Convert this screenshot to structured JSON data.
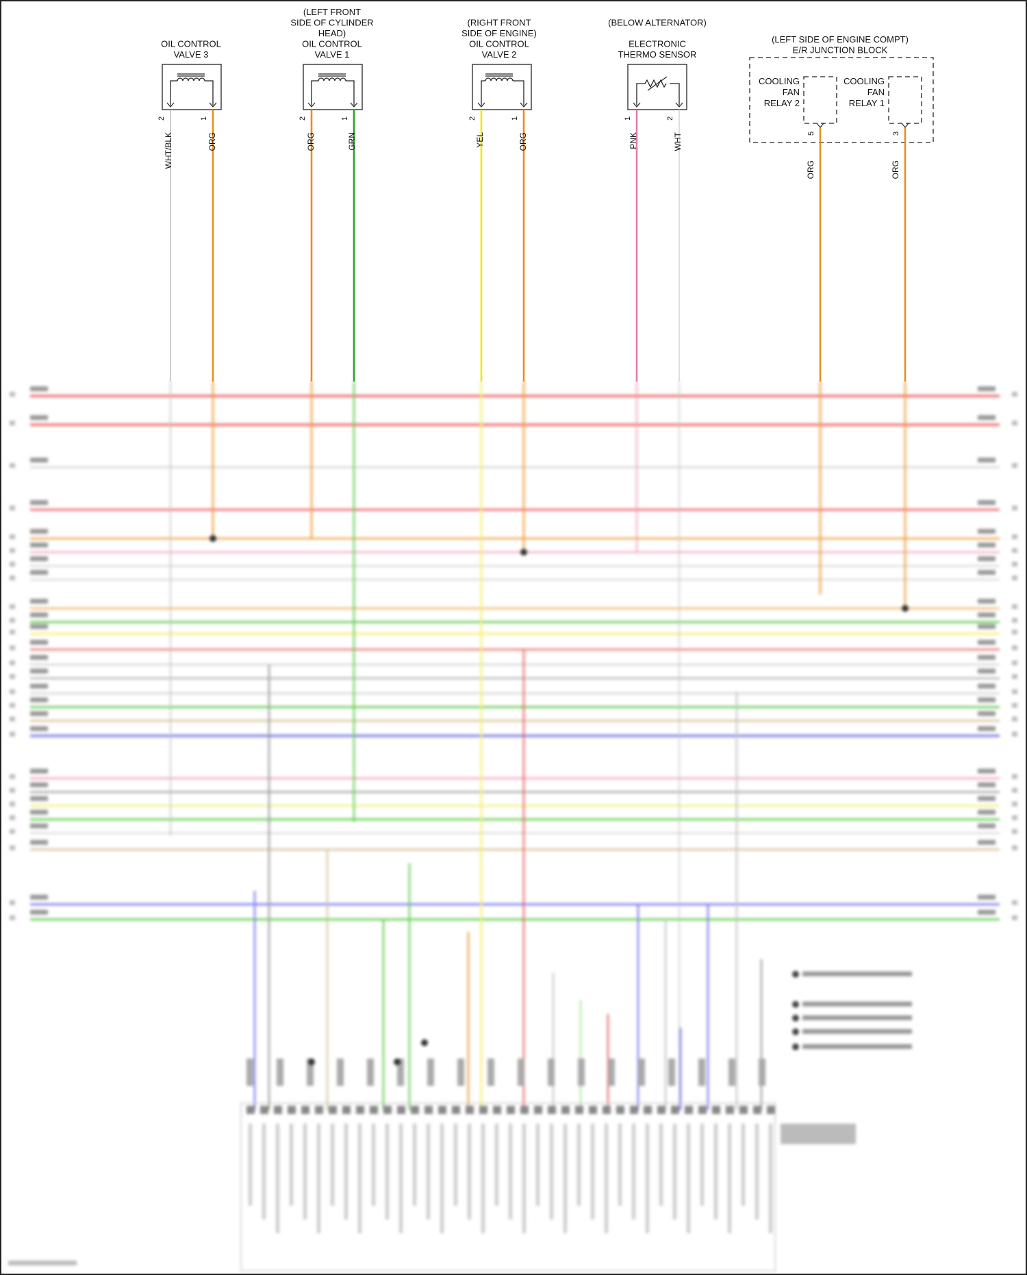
{
  "components": [
    {
      "id": "ocv3",
      "lines": [
        "OIL CONTROL",
        "VALVE 3"
      ],
      "type": "solenoid",
      "pins": [
        {
          "num": "2",
          "wire": "WHT/BLK",
          "color": "#bfbfbf"
        },
        {
          "num": "1",
          "wire": "ORG",
          "color": "#e8901c"
        }
      ]
    },
    {
      "id": "ocv1",
      "lines": [
        "(LEFT FRONT",
        "SIDE OF CYLINDER",
        "HEAD)",
        "OIL CONTROL",
        "VALVE 1"
      ],
      "type": "solenoid",
      "pins": [
        {
          "num": "2",
          "wire": "ORG",
          "color": "#e8901c"
        },
        {
          "num": "1",
          "wire": "GRN",
          "color": "#2fa02f"
        }
      ]
    },
    {
      "id": "ocv2",
      "lines": [
        "(RIGHT FRONT",
        "SIDE OF ENGINE)",
        "OIL CONTROL",
        "VALVE 2"
      ],
      "type": "solenoid",
      "pins": [
        {
          "num": "2",
          "wire": "YEL",
          "color": "#f2e600"
        },
        {
          "num": "1",
          "wire": "ORG",
          "color": "#e8901c"
        }
      ]
    },
    {
      "id": "thermo",
      "lines": [
        "(BELOW ALTERNATOR)",
        "",
        "ELECTRONIC",
        "THERMO SENSOR"
      ],
      "type": "thermistor",
      "pins": [
        {
          "num": "1",
          "wire": "PNK",
          "color": "#e57aa8"
        },
        {
          "num": "2",
          "wire": "WHT",
          "color": "#d6d6d6"
        }
      ]
    }
  ],
  "junction_block": {
    "title_lines": [
      "(LEFT SIDE OF ENGINE COMPT)",
      "E/R JUNCTION BLOCK"
    ],
    "relays": [
      {
        "lines": [
          "COOLING",
          "FAN",
          "RELAY 2"
        ],
        "pin": "5",
        "wire": "ORG",
        "color": "#e8901c"
      },
      {
        "lines": [
          "COOLING",
          "FAN",
          "RELAY 1"
        ],
        "pin": "3",
        "wire": "ORG",
        "color": "#e8901c"
      }
    ]
  },
  "colors": {
    "red": "#f06a6a",
    "pink": "#f2a0b8",
    "orange": "#f0a040",
    "gray": "#c8c8c8",
    "darkgray": "#a0a0a0",
    "green": "#6ccf5a",
    "yellow": "#f5f07a",
    "tan": "#d9c8a0",
    "blue": "#7f7ff0",
    "ltgreen": "#b8e6a0"
  }
}
